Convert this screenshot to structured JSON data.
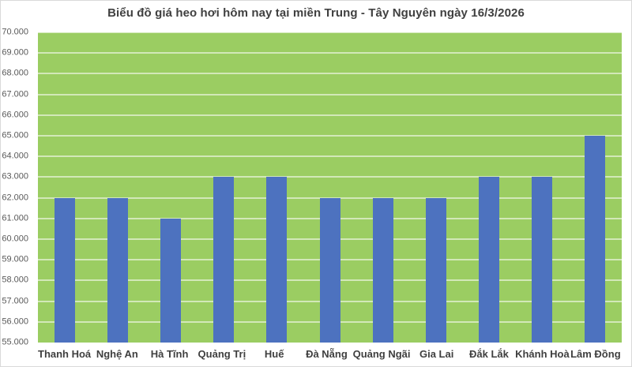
{
  "chart_data": {
    "type": "bar",
    "title": "Biểu đồ giá heo hơi hôm nay tại miền Trung - Tây Nguyên ngày 16/3/2026",
    "categories": [
      "Thanh Hoá",
      "Nghệ An",
      "Hà Tĩnh",
      "Quảng Trị",
      "Huế",
      "Đà Nẵng",
      "Quảng Ngãi",
      "Gia Lai",
      "Đắk Lắk",
      "Khánh Hoà",
      "Lâm Đồng"
    ],
    "values": [
      62000,
      62000,
      61000,
      63000,
      63000,
      62000,
      62000,
      62000,
      63000,
      63000,
      65000
    ],
    "xlabel": "",
    "ylabel": "",
    "ylim": [
      55000,
      70000
    ],
    "ytick_step": 1000,
    "ytick_labels": [
      "55.000",
      "56.000",
      "57.000",
      "58.000",
      "59.000",
      "60.000",
      "61.000",
      "62.000",
      "63.000",
      "64.000",
      "65.000",
      "66.000",
      "67.000",
      "68.000",
      "69.000",
      "70.000"
    ],
    "grid": true,
    "legend": "none"
  },
  "style": {
    "bar_color": "#4D72BF",
    "plot_background": "#9BCD62",
    "gridline_color": "rgba(255,255,255,0.55)",
    "title_color": "#404040",
    "ytick_color": "#595959",
    "xtick_color": "#3F3F3F",
    "chart_background": "#FFFFFF",
    "border_color": "#D9D9D9"
  }
}
